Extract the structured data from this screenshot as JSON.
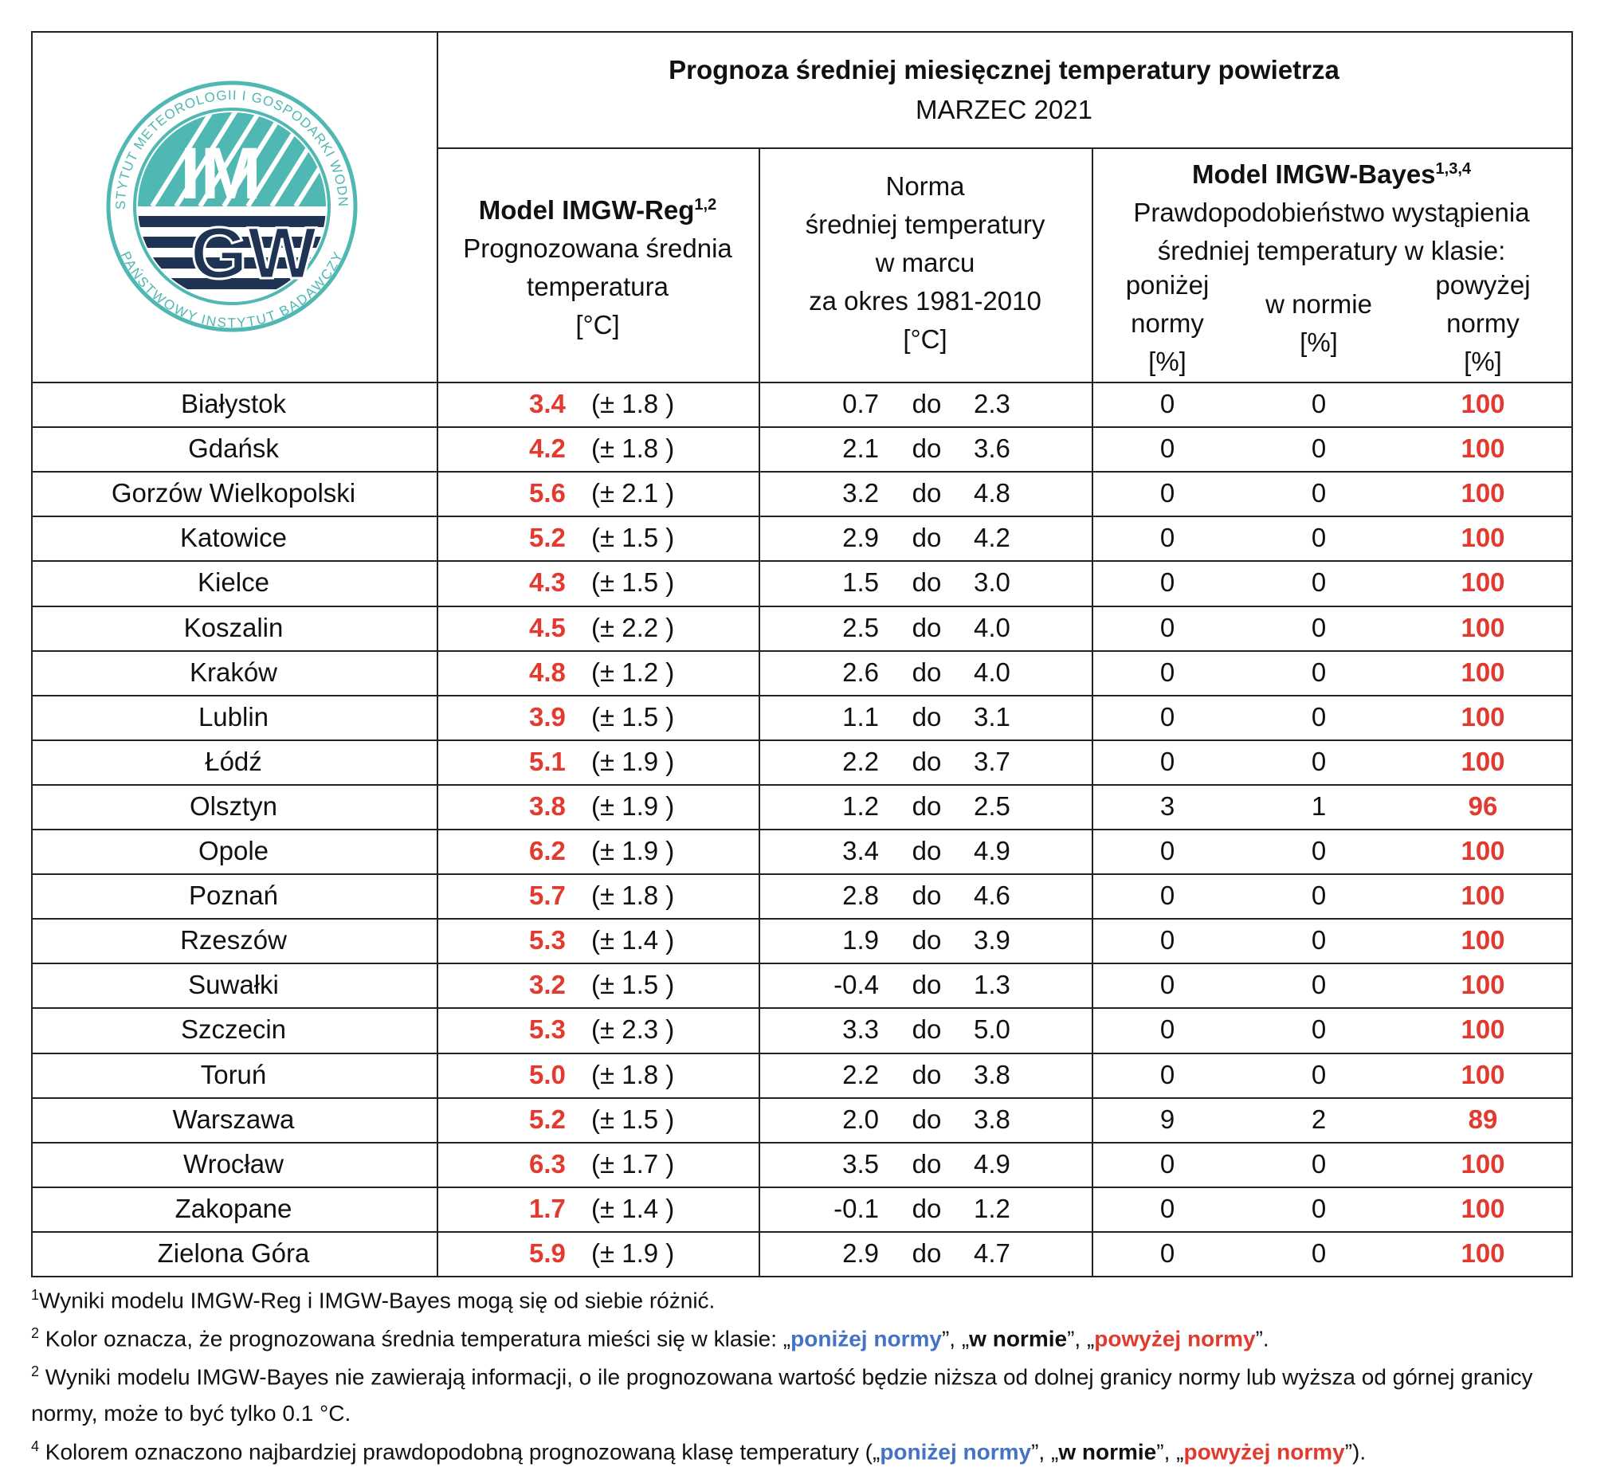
{
  "header": {
    "title": "Prognoza średniej miesięcznej temperatury powietrza",
    "subtitle": "MARZEC 2021",
    "logo": {
      "top_text": "INSTYTUT METEOROLOGII I GOSPODARKI WODNEJ",
      "bottom_text": "PAŃSTWOWY INSTYTUT BADAWCZY",
      "line1": "IM",
      "line2": "GW"
    }
  },
  "columns": {
    "reg": {
      "title": "Model IMGW-Reg",
      "sup": "1,2",
      "lines": [
        "Prognozowana średnia",
        "temperatura",
        "[°C]"
      ]
    },
    "norm": {
      "lines": [
        "Norma",
        "średniej temperatury",
        "w marcu",
        "za okres 1981-2010",
        "[°C]"
      ]
    },
    "bayes": {
      "title": "Model IMGW-Bayes",
      "sup": "1,3,4",
      "lines": [
        "Prawdopodobieństwo wystąpienia",
        "średniej temperatury w klasie:"
      ],
      "sub": [
        [
          "poniżej",
          "normy",
          "[%]"
        ],
        [
          "w normie",
          "[%]"
        ],
        [
          "powyżej",
          "normy",
          "[%]"
        ]
      ]
    }
  },
  "table": {
    "rows": [
      [
        "Białystok",
        "3.4",
        "(± 1.8 )",
        "0.7",
        "do",
        "2.3",
        "0",
        "0",
        "100"
      ],
      [
        "Gdańsk",
        "4.2",
        "(± 1.8 )",
        "2.1",
        "do",
        "3.6",
        "0",
        "0",
        "100"
      ],
      [
        "Gorzów Wielkopolski",
        "5.6",
        "(± 2.1 )",
        "3.2",
        "do",
        "4.8",
        "0",
        "0",
        "100"
      ],
      [
        "Katowice",
        "5.2",
        "(± 1.5 )",
        "2.9",
        "do",
        "4.2",
        "0",
        "0",
        "100"
      ],
      [
        "Kielce",
        "4.3",
        "(± 1.5 )",
        "1.5",
        "do",
        "3.0",
        "0",
        "0",
        "100"
      ],
      [
        "Koszalin",
        "4.5",
        "(± 2.2 )",
        "2.5",
        "do",
        "4.0",
        "0",
        "0",
        "100"
      ],
      [
        "Kraków",
        "4.8",
        "(± 1.2 )",
        "2.6",
        "do",
        "4.0",
        "0",
        "0",
        "100"
      ],
      [
        "Lublin",
        "3.9",
        "(± 1.5 )",
        "1.1",
        "do",
        "3.1",
        "0",
        "0",
        "100"
      ],
      [
        "Łódź",
        "5.1",
        "(± 1.9 )",
        "2.2",
        "do",
        "3.7",
        "0",
        "0",
        "100"
      ],
      [
        "Olsztyn",
        "3.8",
        "(± 1.9 )",
        "1.2",
        "do",
        "2.5",
        "3",
        "1",
        "96"
      ],
      [
        "Opole",
        "6.2",
        "(± 1.9 )",
        "3.4",
        "do",
        "4.9",
        "0",
        "0",
        "100"
      ],
      [
        "Poznań",
        "5.7",
        "(± 1.8 )",
        "2.8",
        "do",
        "4.6",
        "0",
        "0",
        "100"
      ],
      [
        "Rzeszów",
        "5.3",
        "(± 1.4 )",
        "1.9",
        "do",
        "3.9",
        "0",
        "0",
        "100"
      ],
      [
        "Suwałki",
        "3.2",
        "(± 1.5 )",
        "-0.4",
        "do",
        "1.3",
        "0",
        "0",
        "100"
      ],
      [
        "Szczecin",
        "5.3",
        "(± 2.3 )",
        "3.3",
        "do",
        "5.0",
        "0",
        "0",
        "100"
      ],
      [
        "Toruń",
        "5.0",
        "(± 1.8 )",
        "2.2",
        "do",
        "3.8",
        "0",
        "0",
        "100"
      ],
      [
        "Warszawa",
        "5.2",
        "(± 1.5 )",
        "2.0",
        "do",
        "3.8",
        "9",
        "2",
        "89"
      ],
      [
        "Wrocław",
        "6.3",
        "(± 1.7 )",
        "3.5",
        "do",
        "4.9",
        "0",
        "0",
        "100"
      ],
      [
        "Zakopane",
        "1.7",
        "(± 1.4 )",
        "-0.1",
        "do",
        "1.2",
        "0",
        "0",
        "100"
      ],
      [
        "Zielona Góra",
        "5.9",
        "(± 1.9 )",
        "2.9",
        "do",
        "4.7",
        "0",
        "0",
        "100"
      ]
    ]
  },
  "footnotes": [
    {
      "mark": "1",
      "parts": [
        "Wyniki modelu IMGW-Reg i IMGW-Bayes mogą się od siebie różnić."
      ]
    },
    {
      "mark": "2",
      "parts": [
        "Kolor oznacza, że prognozowana średnia temperatura mieści się w klasie: „",
        "poniżej normy",
        "”, „",
        "w normie",
        "”, „",
        "powyżej normy",
        "”."
      ]
    },
    {
      "mark": "2",
      "parts": [
        "Wyniki modelu IMGW-Bayes nie zawierają informacji, o ile prognozowana wartość będzie niższa od dolnej granicy normy lub wyższa od górnej granicy normy, może to być tylko 0.1 °C."
      ]
    },
    {
      "mark": "4",
      "parts": [
        "Kolorem oznaczono najbardziej prawdopodobną prognozowaną klasę temperatury („",
        "poniżej normy",
        "”, „",
        "w normie",
        "”, „",
        "powyżej normy",
        "”)."
      ]
    }
  ]
}
